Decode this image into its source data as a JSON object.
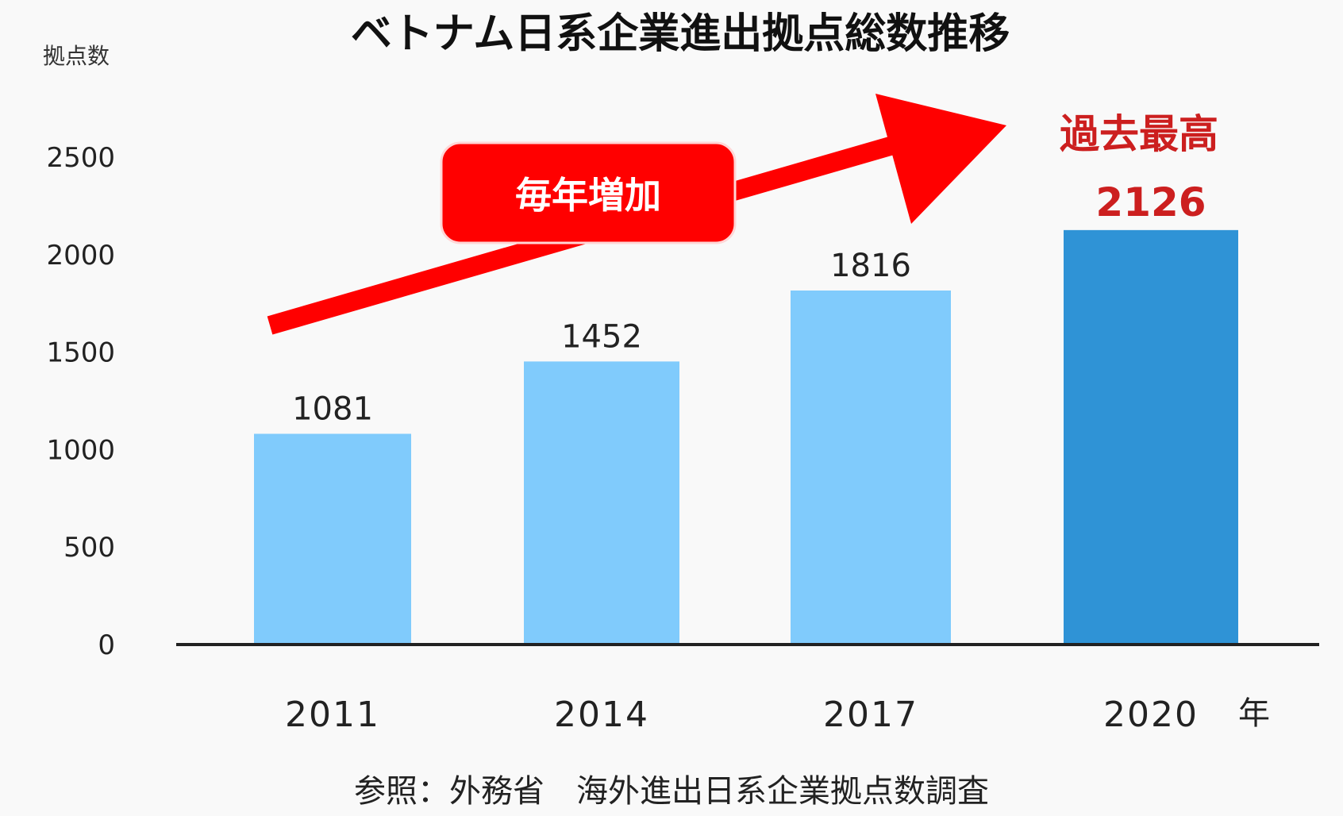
{
  "chart_data": {
    "type": "bar",
    "title": "ベトナム日系企業進出拠点総数推移",
    "ylabel": "拠点数",
    "xunit": "年",
    "categories": [
      "2011",
      "2014",
      "2017",
      "2020"
    ],
    "values": [
      1081,
      1452,
      1816,
      2126
    ],
    "ylim": [
      0,
      2500
    ],
    "yticks": [
      0,
      500,
      1000,
      1500,
      2000,
      2500
    ],
    "grid": false,
    "legend": "none",
    "highlight_index": 3,
    "colors": {
      "bar": "#80cbfc",
      "bar_highlight": "#2f93d6",
      "arrow": "#ff0000",
      "highlight_text": "#cc1f1f"
    },
    "annotations": {
      "trend_label": "毎年増加",
      "record_label": "過去最高"
    },
    "source": "参照：外務省　海外進出日系企業拠点数調査"
  }
}
